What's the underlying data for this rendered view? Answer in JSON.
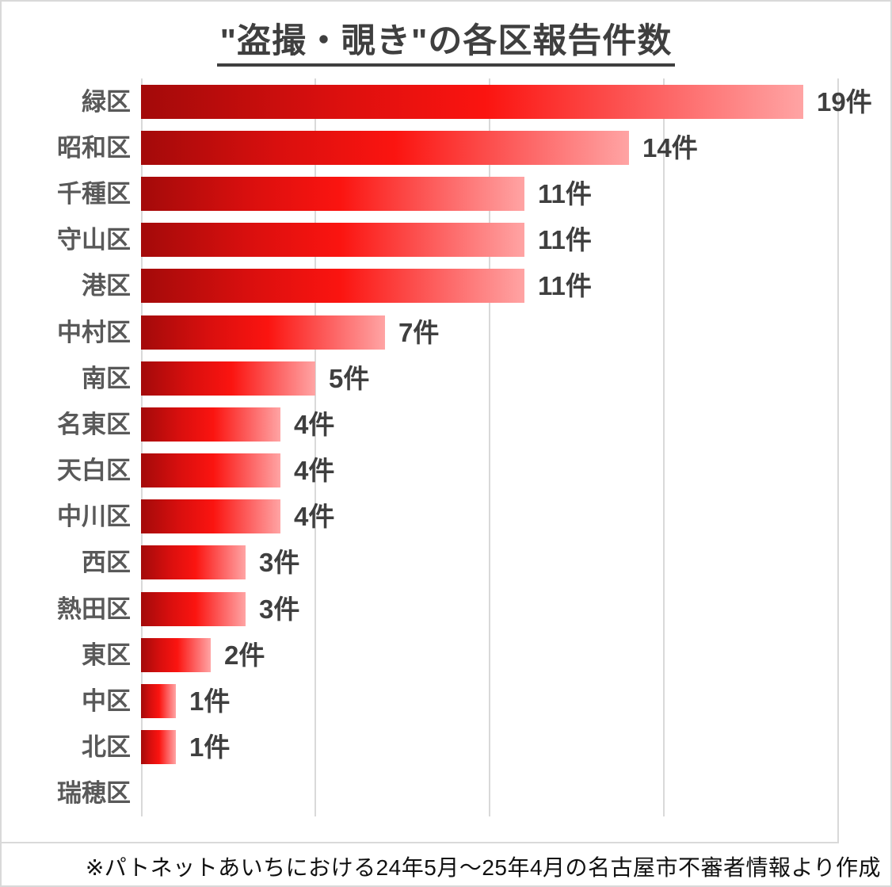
{
  "page": {
    "footnote": "※パトネットあいちにおける24年5月～25年4月の名古屋市不審者情報より作成"
  },
  "chart_data": {
    "type": "bar",
    "orientation": "horizontal",
    "title": "\"盗撮・覗き\"の各区報告件数",
    "categories": [
      "緑区",
      "昭和区",
      "千種区",
      "守山区",
      "港区",
      "中村区",
      "南区",
      "名東区",
      "天白区",
      "中川区",
      "西区",
      "熱田区",
      "東区",
      "中区",
      "北区",
      "瑞穂区"
    ],
    "values": [
      19,
      14,
      11,
      11,
      11,
      7,
      5,
      4,
      4,
      4,
      3,
      3,
      2,
      1,
      1,
      0
    ],
    "value_suffix": "件",
    "xlabel": "",
    "ylabel": "",
    "xlim": [
      0,
      20
    ],
    "gridline_interval": 5,
    "grid": true,
    "legend": "none",
    "colors": {
      "bar_gradient_start": "#a30a0a",
      "bar_gradient_mid": "#fb1410",
      "bar_gradient_end": "#ffa4a4",
      "gridline": "#d9d9d9",
      "category_label": "#595959",
      "value_label": "#3f3f3f",
      "title": "#3f3f3f"
    }
  }
}
